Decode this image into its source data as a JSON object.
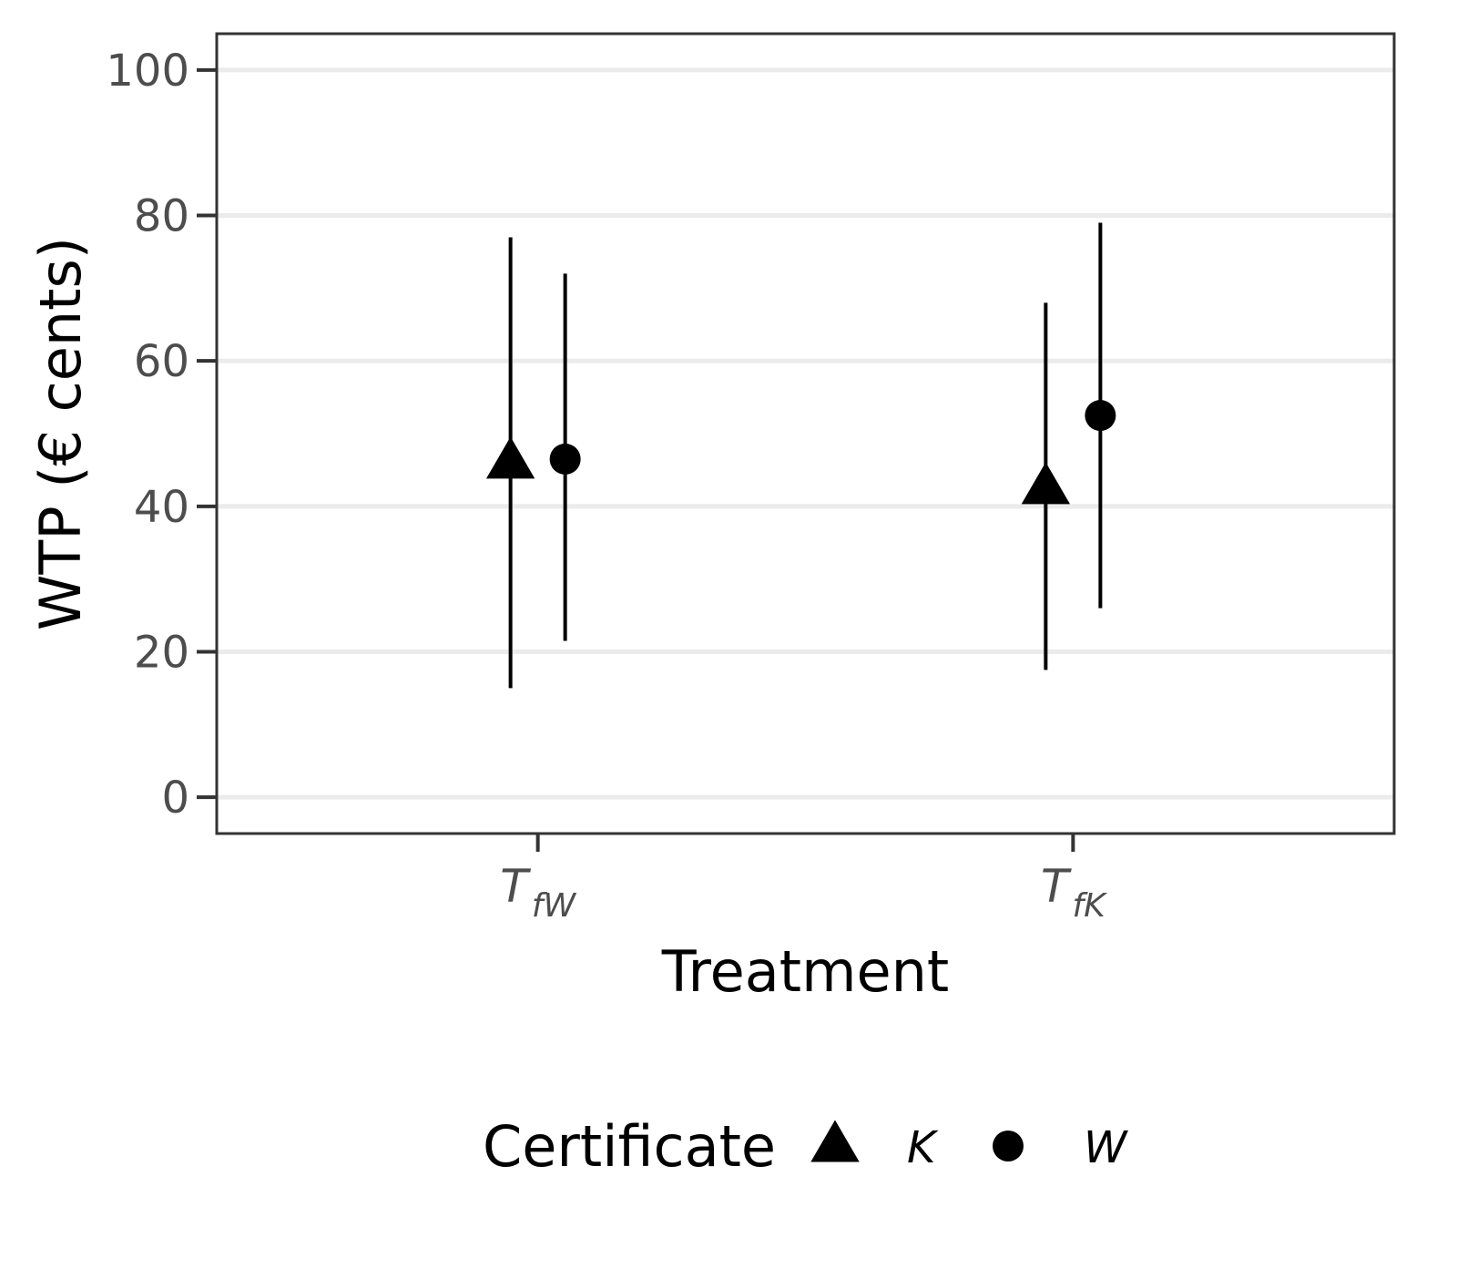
{
  "chart_data": {
    "type": "scatter",
    "title": "",
    "xlabel": "Treatment",
    "ylabel": "WTP (€ cents)",
    "ylim": [
      -5,
      105
    ],
    "yticks": [
      0,
      20,
      40,
      60,
      80,
      100
    ],
    "grid": "horizontal major lines",
    "categories": [
      {
        "main": "T",
        "sub": "fW"
      },
      {
        "main": "T",
        "sub": "fK"
      }
    ],
    "legend": {
      "title": "Certificate",
      "placement": "bottom",
      "entries": [
        "K",
        "W"
      ]
    },
    "series": [
      {
        "name": "K",
        "marker": "triangle",
        "points": [
          {
            "category": "T fW",
            "y": 46,
            "ymin": 15,
            "ymax": 77
          },
          {
            "category": "T fK",
            "y": 42.5,
            "ymin": 17.5,
            "ymax": 68
          }
        ]
      },
      {
        "name": "W",
        "marker": "circle",
        "points": [
          {
            "category": "T fW",
            "y": 46.5,
            "ymin": 21.5,
            "ymax": 72
          },
          {
            "category": "T fK",
            "y": 52.5,
            "ymin": 26,
            "ymax": 79
          }
        ]
      }
    ],
    "colors": {
      "marks": "#000000",
      "panel_border": "#333333",
      "grid": "#ebebeb",
      "tick_text": "#4d4d4d"
    }
  }
}
